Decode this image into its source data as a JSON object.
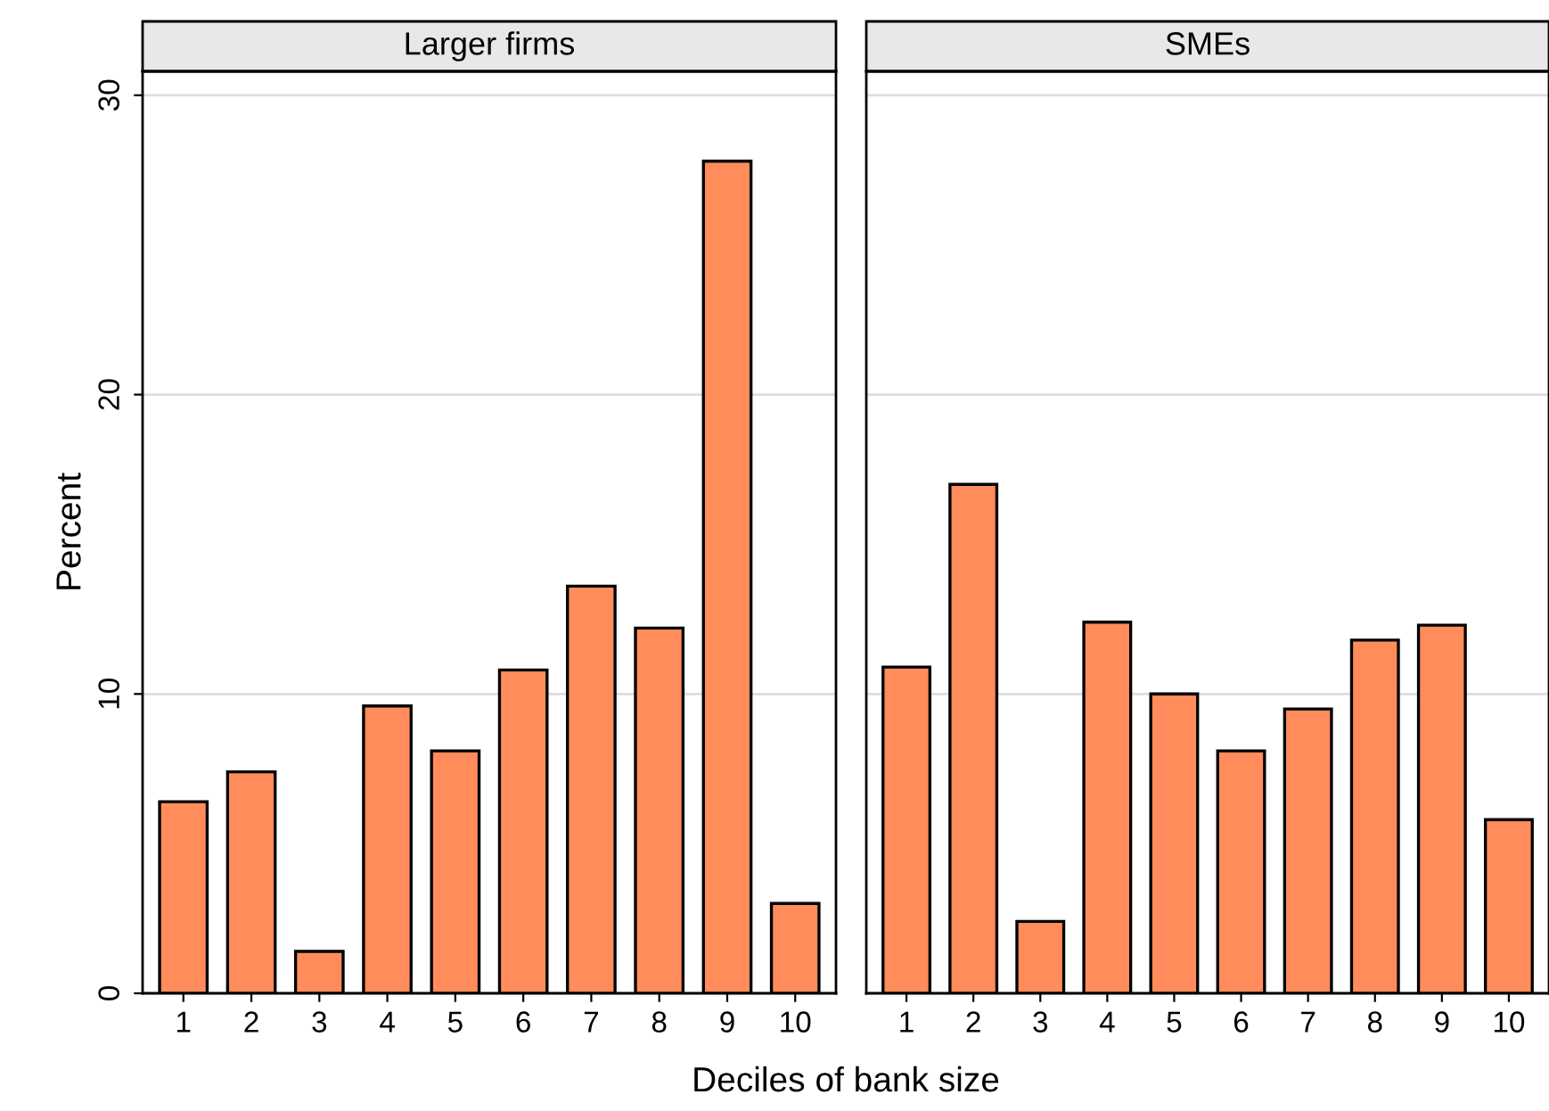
{
  "chart_data": [
    {
      "type": "bar",
      "title": "Larger firms",
      "xlabel": "Deciles of bank size",
      "ylabel": "Percent",
      "categories": [
        "1",
        "2",
        "3",
        "4",
        "5",
        "6",
        "7",
        "8",
        "9",
        "10"
      ],
      "values": [
        6.4,
        7.4,
        1.4,
        9.6,
        8.1,
        10.8,
        13.6,
        12.2,
        27.8,
        3.0
      ],
      "color": "#ff8c5a",
      "ylim": [
        0,
        30.8
      ],
      "yticks": [
        0,
        10,
        20,
        30
      ],
      "grid": "y"
    },
    {
      "type": "bar",
      "title": "SMEs",
      "categories": [
        "1",
        "2",
        "3",
        "4",
        "5",
        "6",
        "7",
        "8",
        "9",
        "10"
      ],
      "values": [
        10.9,
        17.0,
        2.4,
        12.4,
        10.0,
        8.1,
        9.5,
        11.8,
        12.3,
        5.8
      ],
      "color": "#ff8c5a",
      "ylim": [
        0,
        30.8
      ],
      "yticks": [
        0,
        10,
        20,
        30
      ],
      "grid": "y",
      "tick_labels": "x"
    }
  ]
}
